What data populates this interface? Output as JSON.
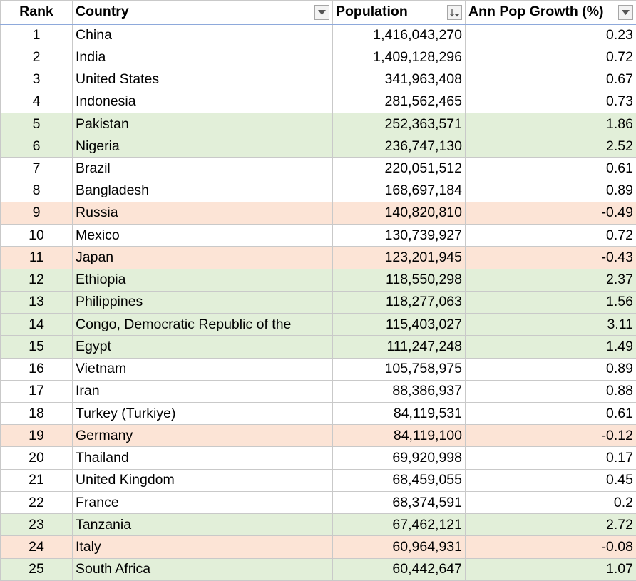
{
  "headers": {
    "rank": "Rank",
    "country": "Country",
    "population": "Population",
    "growth": "Ann Pop Growth (%)"
  },
  "filters": {
    "country": "filter-dropdown",
    "population": "sort-descending",
    "growth": "filter-dropdown"
  },
  "colors": {
    "positive_highlight": "#e2efd9",
    "negative_highlight": "#fce4d6",
    "header_border": "#8ea9db",
    "grid": "#c9c9c9"
  },
  "rows": [
    {
      "rank": "1",
      "country": "China",
      "population": "1,416,043,270",
      "growth": "0.23",
      "highlight": "none"
    },
    {
      "rank": "2",
      "country": "India",
      "population": "1,409,128,296",
      "growth": "0.72",
      "highlight": "none"
    },
    {
      "rank": "3",
      "country": "United States",
      "population": "341,963,408",
      "growth": "0.67",
      "highlight": "none"
    },
    {
      "rank": "4",
      "country": "Indonesia",
      "population": "281,562,465",
      "growth": "0.73",
      "highlight": "none"
    },
    {
      "rank": "5",
      "country": "Pakistan",
      "population": "252,363,571",
      "growth": "1.86",
      "highlight": "pos"
    },
    {
      "rank": "6",
      "country": "Nigeria",
      "population": "236,747,130",
      "growth": "2.52",
      "highlight": "pos"
    },
    {
      "rank": "7",
      "country": "Brazil",
      "population": "220,051,512",
      "growth": "0.61",
      "highlight": "none"
    },
    {
      "rank": "8",
      "country": "Bangladesh",
      "population": "168,697,184",
      "growth": "0.89",
      "highlight": "none"
    },
    {
      "rank": "9",
      "country": "Russia",
      "population": "140,820,810",
      "growth": "-0.49",
      "highlight": "neg"
    },
    {
      "rank": "10",
      "country": "Mexico",
      "population": "130,739,927",
      "growth": "0.72",
      "highlight": "none"
    },
    {
      "rank": "11",
      "country": "Japan",
      "population": "123,201,945",
      "growth": "-0.43",
      "highlight": "neg"
    },
    {
      "rank": "12",
      "country": "Ethiopia",
      "population": "118,550,298",
      "growth": "2.37",
      "highlight": "pos"
    },
    {
      "rank": "13",
      "country": "Philippines",
      "population": "118,277,063",
      "growth": "1.56",
      "highlight": "pos"
    },
    {
      "rank": "14",
      "country": "Congo, Democratic Republic of the",
      "population": "115,403,027",
      "growth": "3.11",
      "highlight": "pos"
    },
    {
      "rank": "15",
      "country": "Egypt",
      "population": "111,247,248",
      "growth": "1.49",
      "highlight": "pos"
    },
    {
      "rank": "16",
      "country": "Vietnam",
      "population": "105,758,975",
      "growth": "0.89",
      "highlight": "none"
    },
    {
      "rank": "17",
      "country": "Iran",
      "population": "88,386,937",
      "growth": "0.88",
      "highlight": "none"
    },
    {
      "rank": "18",
      "country": "Turkey (Turkiye)",
      "population": "84,119,531",
      "growth": "0.61",
      "highlight": "none"
    },
    {
      "rank": "19",
      "country": "Germany",
      "population": "84,119,100",
      "growth": "-0.12",
      "highlight": "neg"
    },
    {
      "rank": "20",
      "country": "Thailand",
      "population": "69,920,998",
      "growth": "0.17",
      "highlight": "none"
    },
    {
      "rank": "21",
      "country": "United Kingdom",
      "population": "68,459,055",
      "growth": "0.45",
      "highlight": "none"
    },
    {
      "rank": "22",
      "country": "France",
      "population": "68,374,591",
      "growth": "0.2",
      "highlight": "none"
    },
    {
      "rank": "23",
      "country": "Tanzania",
      "population": "67,462,121",
      "growth": "2.72",
      "highlight": "pos"
    },
    {
      "rank": "24",
      "country": "Italy",
      "population": "60,964,931",
      "growth": "-0.08",
      "highlight": "neg"
    },
    {
      "rank": "25",
      "country": "South Africa",
      "population": "60,442,647",
      "growth": "1.07",
      "highlight": "pos"
    }
  ]
}
